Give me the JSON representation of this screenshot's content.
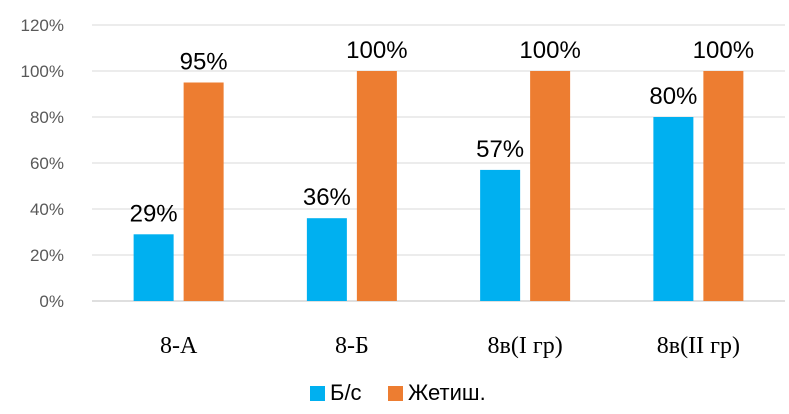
{
  "chart_data": {
    "type": "bar",
    "categories": [
      "8-А",
      "8-Б",
      "8в(I гр)",
      "8в(II гр)"
    ],
    "series": [
      {
        "name": "Б/с",
        "values": [
          29,
          36,
          57,
          80
        ],
        "labels": [
          "29%",
          "36%",
          "57%",
          "80%"
        ],
        "color": "#00B0F0"
      },
      {
        "name": "Жетиш.",
        "values": [
          95,
          100,
          100,
          100
        ],
        "labels": [
          "95%",
          "100%",
          "100%",
          "100%"
        ],
        "color": "#ED7D31"
      }
    ],
    "ylim": [
      0,
      120
    ],
    "yticks": [
      0,
      20,
      40,
      60,
      80,
      100,
      120
    ],
    "ytick_labels": [
      "0%",
      "20%",
      "40%",
      "60%",
      "80%",
      "100%",
      "120%"
    ],
    "grid": true,
    "legend": "bottom",
    "title": "",
    "xlabel": "",
    "ylabel": ""
  }
}
